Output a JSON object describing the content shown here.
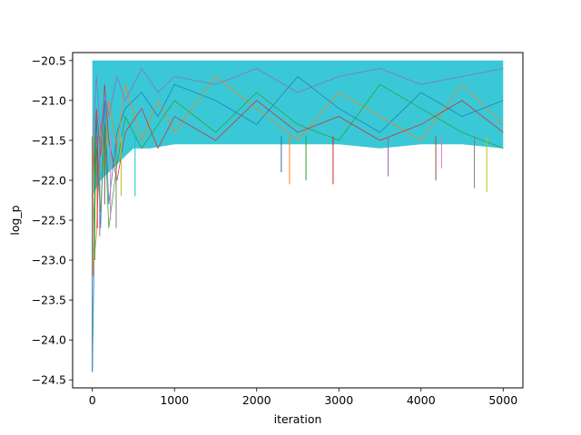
{
  "chart_data": {
    "type": "line",
    "title": "",
    "xlabel": "iteration",
    "ylabel": "log_p",
    "xlim": [
      -240,
      5240
    ],
    "ylim": [
      -24.6,
      -20.4
    ],
    "xticks": [
      0,
      1000,
      2000,
      3000,
      4000,
      5000
    ],
    "xtick_labels": [
      "0",
      "1000",
      "2000",
      "3000",
      "4000",
      "5000"
    ],
    "yticks": [
      -24.5,
      -24.0,
      -23.5,
      -23.0,
      -22.5,
      -22.0,
      -21.5,
      -21.0,
      -20.5
    ],
    "ytick_labels": [
      "−24.5",
      "−24.0",
      "−23.5",
      "−23.0",
      "−22.5",
      "−22.0",
      "−21.5",
      "−21.0",
      "−20.5"
    ],
    "grid": false,
    "legend": "none",
    "series_colors": [
      "#1f77b4",
      "#ff7f0e",
      "#2ca02c",
      "#d62728",
      "#9467bd",
      "#8c564b",
      "#e377c2",
      "#7f7f7f",
      "#bcbd22",
      "#17becf"
    ],
    "series": [
      {
        "x": [
          0,
          50,
          100,
          150,
          200,
          300,
          400,
          600,
          800,
          1000,
          1500,
          2000,
          2500,
          3000,
          3500,
          4000,
          4500,
          5000
        ],
        "values": [
          -24.4,
          -21.2,
          -22.6,
          -21.0,
          -22.3,
          -21.4,
          -21.1,
          -20.9,
          -21.2,
          -20.8,
          -21.0,
          -21.3,
          -20.7,
          -21.1,
          -21.4,
          -20.9,
          -21.2,
          -21.0
        ]
      },
      {
        "x": [
          0,
          50,
          100,
          150,
          200,
          300,
          400,
          600,
          800,
          1000,
          1500,
          2000,
          2500,
          3000,
          3500,
          4000,
          4500,
          5000
        ],
        "values": [
          -23.2,
          -22.7,
          -21.3,
          -21.9,
          -21.0,
          -21.6,
          -20.8,
          -21.5,
          -21.0,
          -21.4,
          -20.7,
          -21.1,
          -21.5,
          -20.9,
          -21.2,
          -21.5,
          -20.8,
          -21.3
        ]
      },
      {
        "x": [
          0,
          50,
          100,
          150,
          200,
          300,
          400,
          600,
          800,
          1000,
          1500,
          2000,
          2500,
          3000,
          3500,
          4000,
          4500,
          5000
        ],
        "values": [
          -23.0,
          -21.6,
          -22.4,
          -21.3,
          -22.6,
          -21.8,
          -21.2,
          -21.6,
          -21.3,
          -21.0,
          -21.4,
          -20.9,
          -21.3,
          -21.5,
          -20.8,
          -21.1,
          -21.4,
          -21.6
        ]
      },
      {
        "x": [
          0,
          50,
          100,
          150,
          200,
          300,
          400,
          600,
          800,
          1000,
          1500,
          2000,
          2500,
          3000,
          3500,
          4000,
          4500,
          5000
        ],
        "values": [
          -22.2,
          -21.1,
          -21.7,
          -20.8,
          -21.5,
          -22.0,
          -21.4,
          -21.1,
          -21.6,
          -21.2,
          -21.5,
          -21.0,
          -21.4,
          -21.2,
          -21.5,
          -21.3,
          -21.0,
          -21.4
        ]
      },
      {
        "x": [
          0,
          50,
          100,
          150,
          200,
          300,
          400,
          600,
          800,
          1000,
          1500,
          2000,
          2500,
          3000,
          3500,
          4000,
          4500,
          5000
        ],
        "values": [
          -21.6,
          -20.7,
          -21.4,
          -20.9,
          -21.2,
          -20.7,
          -21.0,
          -20.6,
          -20.9,
          -20.7,
          -20.8,
          -20.6,
          -20.9,
          -20.7,
          -20.6,
          -20.8,
          -20.7,
          -20.6
        ]
      }
    ],
    "envelope": {
      "x": [
        0,
        100,
        200,
        300,
        400,
        500,
        700,
        1000,
        1500,
        2000,
        2500,
        3000,
        3500,
        4000,
        4500,
        5000
      ],
      "upper": [
        -20.5,
        -20.5,
        -20.5,
        -20.5,
        -20.5,
        -20.5,
        -20.5,
        -20.5,
        -20.5,
        -20.5,
        -20.5,
        -20.5,
        -20.5,
        -20.5,
        -20.5,
        -20.5
      ],
      "lower": [
        -22.2,
        -22.0,
        -21.9,
        -21.8,
        -21.7,
        -21.6,
        -21.6,
        -21.55,
        -21.55,
        -21.55,
        -21.55,
        -21.55,
        -21.6,
        -21.55,
        -21.55,
        -21.6
      ]
    },
    "spikes": [
      {
        "x": 0,
        "y": -24.4
      },
      {
        "x": 10,
        "y": -23.2
      },
      {
        "x": 30,
        "y": -23.0
      },
      {
        "x": 60,
        "y": -22.6
      },
      {
        "x": 90,
        "y": -22.7
      },
      {
        "x": 150,
        "y": -22.3
      },
      {
        "x": 220,
        "y": -22.5
      },
      {
        "x": 290,
        "y": -22.6
      },
      {
        "x": 350,
        "y": -22.2
      },
      {
        "x": 520,
        "y": -22.2
      },
      {
        "x": 2300,
        "y": -21.9
      },
      {
        "x": 2400,
        "y": -22.05
      },
      {
        "x": 2600,
        "y": -22.0
      },
      {
        "x": 2930,
        "y": -22.05
      },
      {
        "x": 3600,
        "y": -21.95
      },
      {
        "x": 4180,
        "y": -22.0
      },
      {
        "x": 4250,
        "y": -21.85
      },
      {
        "x": 4650,
        "y": -22.1
      },
      {
        "x": 4800,
        "y": -22.15
      }
    ]
  }
}
